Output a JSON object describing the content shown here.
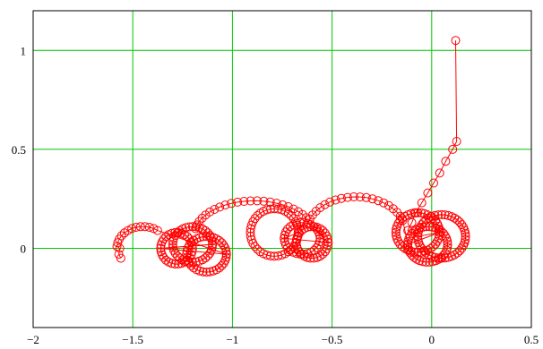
{
  "chart_data": {
    "type": "line",
    "title": "",
    "xlabel": "",
    "ylabel": "",
    "xlim": [
      -2,
      0.5
    ],
    "ylim": [
      -0.4,
      1.2
    ],
    "xticks": [
      -2,
      -1.5,
      -1,
      -0.5,
      0,
      0.5
    ],
    "yticks": [
      1,
      0.5,
      0
    ],
    "xtick_labels": [
      "−2",
      "−1.5",
      "−1",
      "−0.5",
      "0",
      "0.5"
    ],
    "ytick_labels": [
      "1",
      "0.5",
      "0"
    ],
    "grid": true,
    "colors": {
      "series": "#ff0000",
      "grid": "#00c800",
      "frame": "#000000"
    },
    "marker": "open-circle",
    "series": [
      {
        "x": [
          0.12,
          0.125,
          0.105,
          0.07,
          0.04,
          0.01,
          -0.02,
          -0.05,
          -0.08,
          -0.1,
          -0.12
        ],
        "y": [
          1.05,
          0.54,
          0.5,
          0.44,
          0.38,
          0.33,
          0.28,
          0.23,
          0.18,
          0.13,
          0.09
        ]
      }
    ],
    "loops": [
      {
        "cx": 0.05,
        "cy": 0.06,
        "rx": 0.12,
        "ry": 0.11,
        "n": 44
      },
      {
        "cx": -0.07,
        "cy": 0.08,
        "rx": 0.11,
        "ry": 0.1,
        "n": 40
      },
      {
        "cx": -0.02,
        "cy": 0.02,
        "rx": 0.1,
        "ry": 0.09,
        "n": 38
      },
      {
        "cx": -0.6,
        "cy": 0.03,
        "rx": 0.08,
        "ry": 0.08,
        "n": 30
      },
      {
        "cx": -0.65,
        "cy": 0.05,
        "rx": 0.09,
        "ry": 0.08,
        "n": 30
      },
      {
        "cx": -0.79,
        "cy": 0.08,
        "rx": 0.12,
        "ry": 0.12,
        "n": 40
      },
      {
        "cx": -1.2,
        "cy": 0.02,
        "rx": 0.1,
        "ry": 0.09,
        "n": 36
      },
      {
        "cx": -1.28,
        "cy": 0.0,
        "rx": 0.08,
        "ry": 0.08,
        "n": 30
      },
      {
        "cx": -1.13,
        "cy": -0.03,
        "rx": 0.1,
        "ry": 0.09,
        "n": 36
      }
    ],
    "arcs": [
      {
        "cx": -0.38,
        "cy": 0.08,
        "rx": 0.25,
        "ry": 0.18,
        "from": 20,
        "to": 165,
        "n": 20
      },
      {
        "cx": -0.89,
        "cy": 0.07,
        "rx": 0.3,
        "ry": 0.17,
        "from": 30,
        "to": 170,
        "n": 22
      },
      {
        "cx": -1.45,
        "cy": 0.0,
        "rx": 0.13,
        "ry": 0.11,
        "from": 55,
        "to": 175,
        "n": 12
      }
    ],
    "tail": {
      "x": [
        -1.565,
        -1.57,
        -1.56
      ],
      "y": [
        0.0,
        -0.03,
        -0.05
      ]
    }
  }
}
